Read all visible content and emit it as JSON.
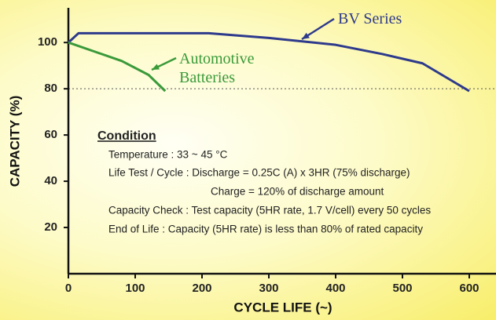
{
  "chart_data": {
    "type": "line",
    "x_label": "CYCLE LIFE (~)",
    "y_label": "CAPACITY (%)",
    "xlim": [
      0,
      640
    ],
    "ylim": [
      0,
      115
    ],
    "xticks": [
      0,
      100,
      200,
      300,
      400,
      500,
      600
    ],
    "yticks": [
      20,
      40,
      60,
      80,
      100
    ],
    "reference_line": 80,
    "series": [
      {
        "name": "BV Series",
        "color": "#2e3a8c",
        "x": [
          0,
          15,
          100,
          210,
          300,
          400,
          470,
          530,
          600
        ],
        "values": [
          100,
          104,
          104,
          104,
          102,
          99,
          95,
          91,
          79
        ]
      },
      {
        "name": "Automotive Batteries",
        "color": "#3a9a3a",
        "x": [
          0,
          40,
          80,
          120,
          145
        ],
        "values": [
          100,
          96,
          92,
          86,
          79
        ]
      }
    ],
    "condition": {
      "title": "Condition",
      "lines": [
        "Temperature : 33 ~ 45 °C",
        "Life Test / Cycle : Discharge = 0.25C (A) x 3HR (75% discharge)",
        "Charge = 120% of discharge amount",
        "Capacity Check : Test capacity (5HR rate, 1.7 V/cell) every 50 cycles",
        "End of Life : Capacity (5HR rate) is less than 80% of rated capacity"
      ]
    }
  }
}
